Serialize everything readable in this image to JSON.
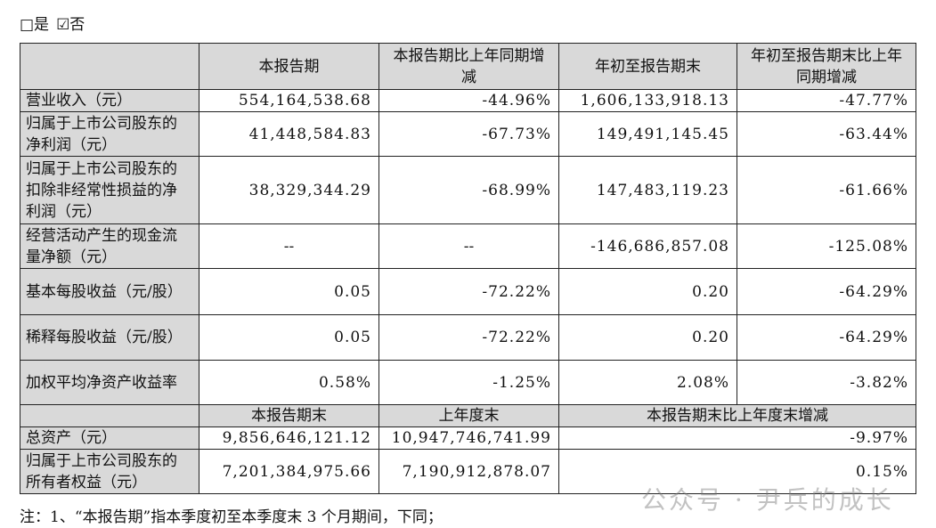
{
  "checkbox": {
    "yes": "□是",
    "no": "☑否"
  },
  "table": {
    "header": [
      "本报告期",
      "本报告期比上年同期增减",
      "年初至报告期末",
      "年初至报告期末比上年同期增减"
    ],
    "rows": [
      [
        "营业收入（元）",
        "554,164,538.68",
        "-44.96%",
        "1,606,133,918.13",
        "-47.77%"
      ],
      [
        "归属于上市公司股东的净利润（元）",
        "41,448,584.83",
        "-67.73%",
        "149,491,145.45",
        "-63.44%"
      ],
      [
        "归属于上市公司股东的扣除非经常性损益的净利润（元）",
        "38,329,344.29",
        "-68.99%",
        "147,483,119.23",
        "-61.66%"
      ],
      [
        "经营活动产生的现金流量净额（元）",
        "--",
        "--",
        "-146,686,857.08",
        "-125.08%"
      ],
      [
        "基本每股收益（元/股）",
        "0.05",
        "-72.22%",
        "0.20",
        "-64.29%"
      ],
      [
        "稀释每股收益（元/股）",
        "0.05",
        "-72.22%",
        "0.20",
        "-64.29%"
      ],
      [
        "加权平均净资产收益率",
        "0.58%",
        "-1.25%",
        "2.08%",
        "-3.82%"
      ]
    ],
    "header2": [
      "本报告期末",
      "上年度末",
      "本报告期末比上年度末增减"
    ],
    "rows2": [
      [
        "总资产（元）",
        "9,856,646,121.12",
        "10,947,746,741.99",
        "-9.97%"
      ],
      [
        "归属于上市公司股东的所有者权益（元）",
        "7,201,384,975.66",
        "7,190,912,878.07",
        "0.15%"
      ]
    ]
  },
  "footnote": "注：1、“本报告期”指本季度初至本季度末 3 个月期间，下同；",
  "watermark": "公众号 · 尹兵的成长"
}
